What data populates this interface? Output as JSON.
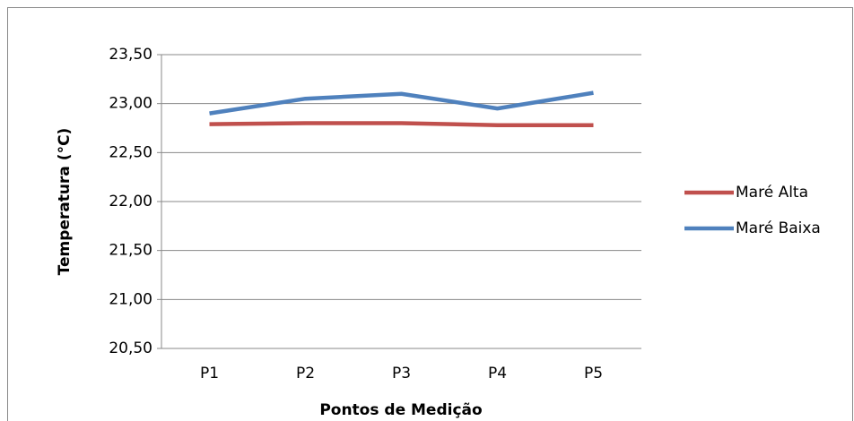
{
  "chart_data": {
    "type": "line",
    "x_label": "Pontos de Medição",
    "y_label": "Temperatura (°C)",
    "categories": [
      "P1",
      "P2",
      "P3",
      "P4",
      "P5"
    ],
    "series": [
      {
        "name": "Maré Alta",
        "color": "#c0504d",
        "values": [
          22.79,
          22.8,
          22.8,
          22.78,
          22.78
        ]
      },
      {
        "name": "Maré Baixa",
        "color": "#4f81bd",
        "values": [
          22.9,
          23.05,
          23.1,
          22.95,
          23.11
        ]
      }
    ],
    "ylim": [
      20.5,
      23.5
    ],
    "yticks": [
      {
        "value": 20.5,
        "label": "20,50"
      },
      {
        "value": 21,
        "label": "21,00"
      },
      {
        "value": 21.5,
        "label": "21,50"
      },
      {
        "value": 22,
        "label": "22,00"
      },
      {
        "value": 22.5,
        "label": "22,50"
      },
      {
        "value": 23,
        "label": "23,00"
      },
      {
        "value": 23.5,
        "label": "23,50"
      }
    ],
    "grid": true,
    "legend": "right"
  }
}
